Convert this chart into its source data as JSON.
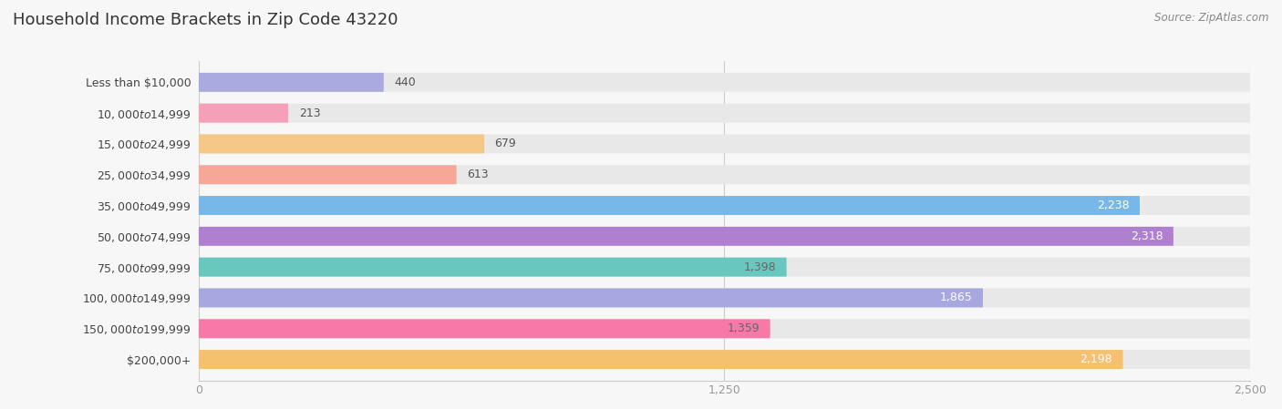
{
  "title": "Household Income Brackets in Zip Code 43220",
  "source": "Source: ZipAtlas.com",
  "categories": [
    "Less than $10,000",
    "$10,000 to $14,999",
    "$15,000 to $24,999",
    "$25,000 to $34,999",
    "$35,000 to $49,999",
    "$50,000 to $74,999",
    "$75,000 to $99,999",
    "$100,000 to $149,999",
    "$150,000 to $199,999",
    "$200,000+"
  ],
  "values": [
    440,
    213,
    679,
    613,
    2238,
    2318,
    1398,
    1865,
    1359,
    2198
  ],
  "bar_colors": [
    "#aaaae0",
    "#f5a0b8",
    "#f5c888",
    "#f5a898",
    "#78b8e8",
    "#b080d0",
    "#68c8c0",
    "#a8a8e0",
    "#f878a8",
    "#f5c070"
  ],
  "bar_label_colors": [
    "#666666",
    "#666666",
    "#666666",
    "#666666",
    "#ffffff",
    "#ffffff",
    "#666666",
    "#ffffff",
    "#666666",
    "#ffffff"
  ],
  "xlim": [
    0,
    2500
  ],
  "xticks": [
    0,
    1250,
    2500
  ],
  "background_color": "#f7f7f7",
  "bar_bg_color": "#e8e8e8",
  "title_fontsize": 13,
  "label_fontsize": 9,
  "value_fontsize": 9,
  "source_fontsize": 8.5
}
